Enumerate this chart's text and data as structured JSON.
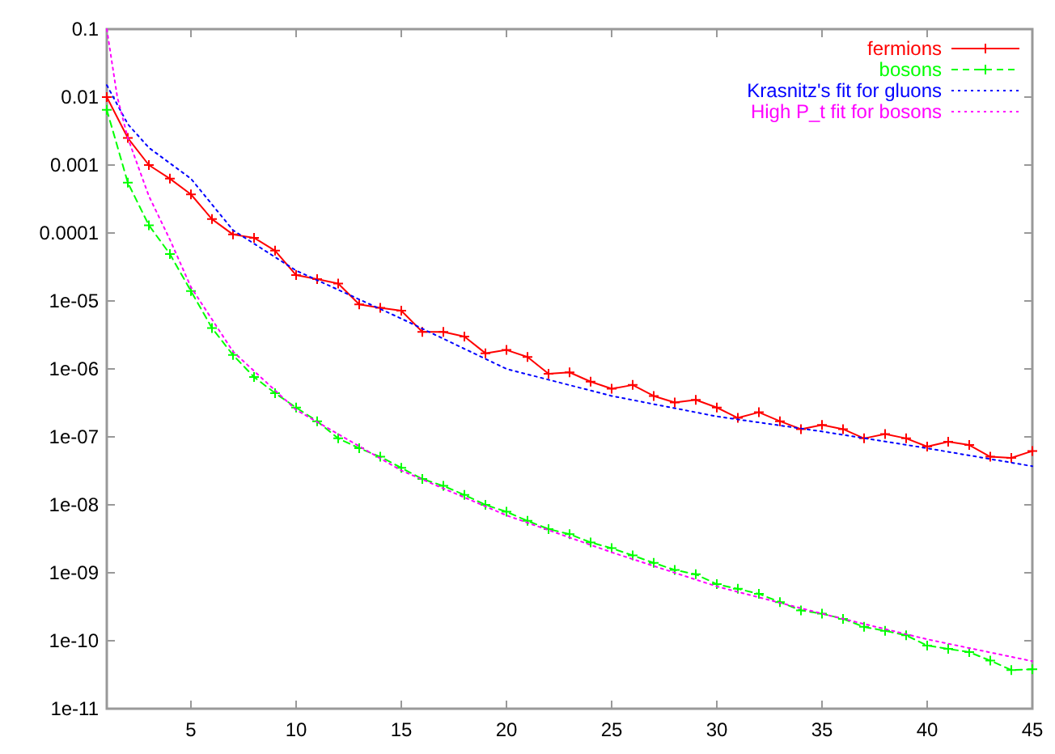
{
  "chart_data": {
    "type": "line",
    "log": "y",
    "legend": "top right",
    "grid": false,
    "x": [
      1,
      2,
      3,
      4,
      5,
      6,
      7,
      8,
      9,
      10,
      11,
      12,
      13,
      14,
      15,
      16,
      17,
      18,
      19,
      20,
      21,
      22,
      23,
      24,
      25,
      26,
      27,
      28,
      29,
      30,
      31,
      32,
      33,
      34,
      35,
      36,
      37,
      38,
      39,
      40,
      41,
      42,
      43,
      44,
      45
    ],
    "xlim": [
      1,
      45
    ],
    "xticks": [
      5,
      10,
      15,
      20,
      25,
      30,
      35,
      40,
      45
    ],
    "ylim": [
      1e-11,
      0.1
    ],
    "yticks": [
      0.1,
      0.01,
      0.001,
      0.0001,
      {
        "value": 1e-05,
        "label": "1e-05"
      },
      {
        "value": 1e-06,
        "label": "1e-06"
      },
      {
        "value": 1e-07,
        "label": "1e-07"
      },
      {
        "value": 1e-08,
        "label": "1e-08"
      },
      {
        "value": 1e-09,
        "label": "1e-09"
      },
      {
        "value": 1e-10,
        "label": "1e-10"
      },
      {
        "value": 1e-11,
        "label": "1e-11"
      }
    ],
    "series": [
      {
        "name": "fermions",
        "color": "#ff0000",
        "marker": "cross",
        "line_style": "solid",
        "values": [
          0.01,
          0.0025,
          0.001,
          0.00063,
          0.00037,
          0.00016,
          9.5e-05,
          8.5e-05,
          5.5e-05,
          2.4e-05,
          2.1e-05,
          1.8e-05,
          8.9e-06,
          7.9e-06,
          7.2e-06,
          3.5e-06,
          3.5e-06,
          3e-06,
          1.7e-06,
          1.9e-06,
          1.5e-06,
          8.5e-07,
          8.9e-07,
          6.5e-07,
          5.1e-07,
          5.8e-07,
          4e-07,
          3.2e-07,
          3.5e-07,
          2.7e-07,
          1.9e-07,
          2.3e-07,
          1.7e-07,
          1.3e-07,
          1.5e-07,
          1.3e-07,
          9.5e-08,
          1.1e-07,
          9.5e-08,
          7.2e-08,
          8.5e-08,
          7.6e-08,
          5.1e-08,
          4.9e-08,
          6.2e-08
        ]
      },
      {
        "name": "bosons",
        "color": "#00ff00",
        "marker": "cross",
        "line_style": "dashed",
        "values": [
          0.0065,
          0.00055,
          0.00013,
          4.9e-05,
          1.4e-05,
          4e-06,
          1.6e-06,
          7.6e-07,
          4.4e-07,
          2.7e-07,
          1.7e-07,
          9.5e-08,
          6.8e-08,
          5.1e-08,
          3.5e-08,
          2.4e-08,
          1.9e-08,
          1.4e-08,
          1e-08,
          7.9e-09,
          5.8e-09,
          4.4e-09,
          3.7e-09,
          2.8e-09,
          2.3e-09,
          1.8e-09,
          1.4e-09,
          1.1e-09,
          9.5e-10,
          6.8e-10,
          5.8e-10,
          4.9e-10,
          3.7e-10,
          2.8e-10,
          2.5e-10,
          2.1e-10,
          1.6e-10,
          1.4e-10,
          1.2e-10,
          8.5e-11,
          7.6e-11,
          6.8e-11,
          5.1e-11,
          3.7e-11,
          3.8e-11
        ]
      },
      {
        "name": "Krasnitz's fit for gluons",
        "color": "#0000ff",
        "marker": "none",
        "line_style": "dotted",
        "x": [
          1,
          2,
          3,
          5,
          7,
          10,
          15,
          20,
          25,
          30,
          35,
          40,
          45
        ],
        "values": [
          0.015,
          0.004,
          0.0018,
          0.00063,
          0.00011,
          2.8e-05,
          5.5e-06,
          1e-06,
          4e-07,
          2e-07,
          1.2e-07,
          6.8e-08,
          3.7e-08
        ]
      },
      {
        "name": "High P_t fit for bosons",
        "color": "#ff00ff",
        "marker": "none",
        "line_style": "dotted",
        "x": [
          1,
          1.5,
          2,
          3,
          4,
          5,
          7,
          10,
          15,
          20,
          25,
          30,
          35,
          40,
          45
        ],
        "values": [
          0.1,
          0.01,
          0.0025,
          0.00035,
          8e-05,
          1.6e-05,
          1.8e-06,
          2.5e-07,
          3.2e-08,
          7e-09,
          2e-09,
          6.3e-10,
          2.5e-10,
          1.05e-10,
          5e-11
        ]
      }
    ]
  }
}
